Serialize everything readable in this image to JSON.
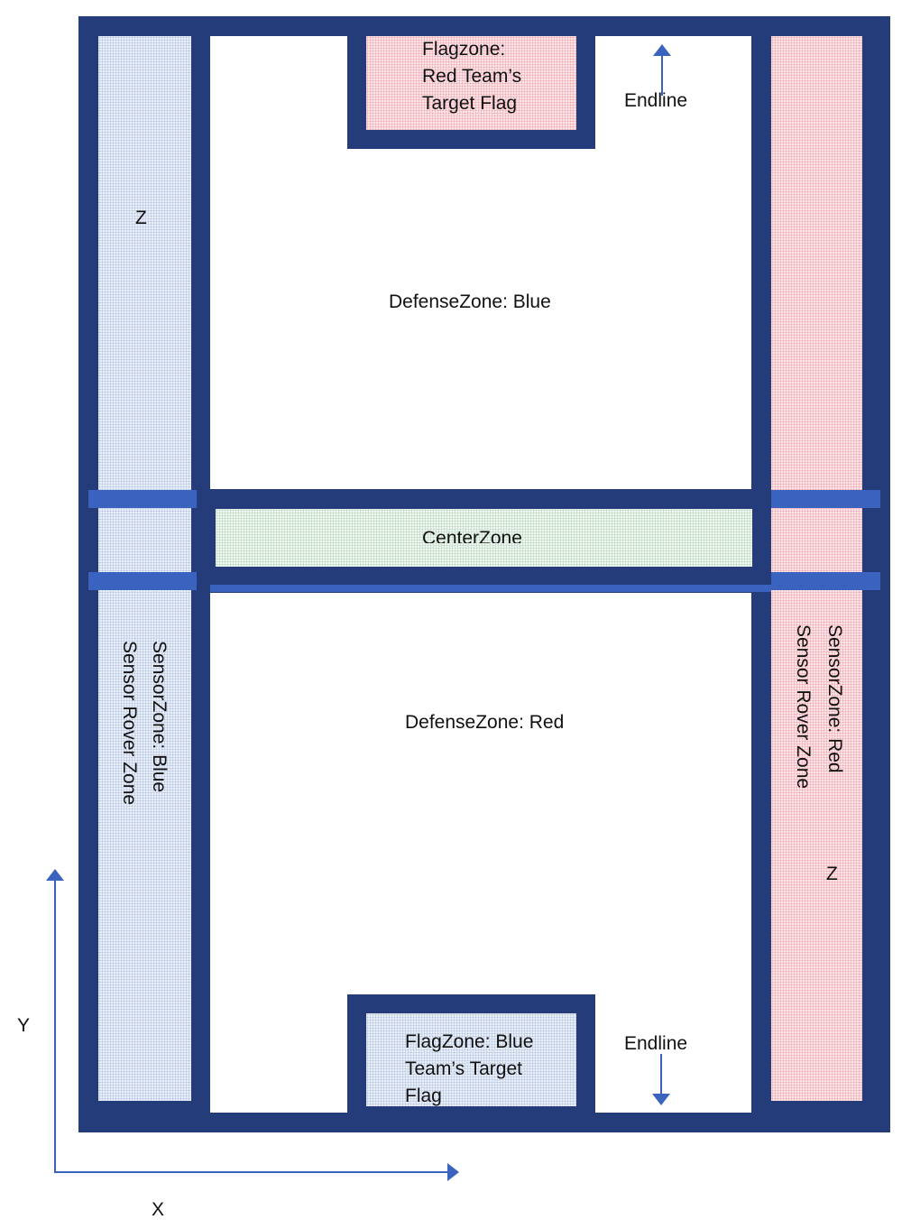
{
  "zones": {
    "flagzone_red": "Flagzone:\nRed Team’s\nTarget Flag",
    "flagzone_blue": "FlagZone: Blue\nTeam’s Target\nFlag",
    "defense_blue": "DefenseZone: Blue",
    "defense_red": "DefenseZone: Red",
    "center": "CenterZone",
    "sensor_blue": "SensorZone: Blue",
    "sensor_blue_sub": "Sensor Rover Zone",
    "sensor_red": "SensorZone: Red",
    "sensor_red_sub": "Sensor Rover Zone"
  },
  "labels": {
    "endline_top": "Endline",
    "endline_bottom": "Endline",
    "z_left": "Z",
    "z_right": "Z"
  },
  "axes": {
    "x_label": "X",
    "y_label": "Y"
  },
  "colors": {
    "border": "#243d7a",
    "divider_bar": "#3a63c0",
    "arrow": "#3a63c0",
    "blue_zone": "#e8eef8",
    "red_zone": "#fbe3e6",
    "center_zone": "#eef6f0"
  },
  "icons": {
    "endline_top": "arrow-up-icon",
    "endline_bottom": "arrow-down-icon"
  }
}
